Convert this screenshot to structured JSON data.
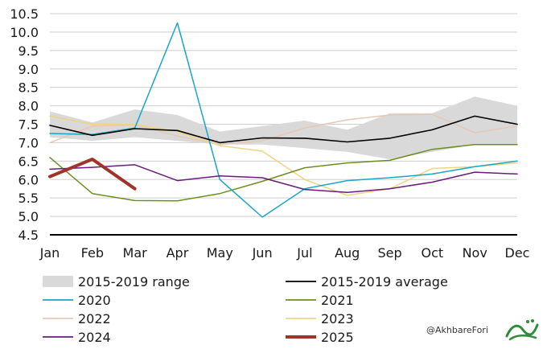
{
  "chart_data": {
    "type": "line",
    "title": "",
    "xlabel": "",
    "ylabel": "",
    "ylim": [
      4.5,
      10.5
    ],
    "y_ticks": [
      "10.5",
      "10.0",
      "9.5",
      "9.0",
      "8.5",
      "8.0",
      "7.5",
      "7.0",
      "6.5",
      "6.0",
      "5.5",
      "5.0",
      "4.5"
    ],
    "categories": [
      "Jan",
      "Feb",
      "Mar",
      "Apr",
      "May",
      "Jun",
      "Jul",
      "Aug",
      "Sep",
      "Oct",
      "Nov",
      "Dec"
    ],
    "grid": true,
    "legend_position": "bottom",
    "range_band": {
      "name": "2015-2019 range",
      "color": "#d9d9d9",
      "upper": [
        7.85,
        7.55,
        7.9,
        7.75,
        7.3,
        7.45,
        7.6,
        7.35,
        7.8,
        7.8,
        8.25,
        8.0
      ],
      "lower": [
        7.15,
        7.05,
        7.15,
        7.05,
        6.95,
        6.95,
        6.85,
        6.75,
        6.55,
        6.75,
        6.95,
        6.95
      ]
    },
    "series": [
      {
        "name": "2015-2019 average",
        "color": "#000000",
        "width": 1.6,
        "values": [
          7.47,
          7.2,
          7.38,
          7.33,
          7.0,
          7.13,
          7.12,
          7.02,
          7.12,
          7.35,
          7.72,
          7.5
        ]
      },
      {
        "name": "2020",
        "color": "#1aa6c4",
        "width": 1.5,
        "values": [
          7.25,
          7.22,
          7.4,
          10.25,
          6.0,
          4.98,
          5.75,
          5.97,
          6.05,
          6.15,
          6.35,
          6.5
        ]
      },
      {
        "name": "2021",
        "color": "#6b8f1f",
        "width": 1.5,
        "values": [
          6.6,
          5.62,
          5.43,
          5.42,
          5.62,
          5.95,
          6.32,
          6.45,
          6.52,
          6.82,
          6.95,
          6.95
        ]
      },
      {
        "name": "2022",
        "color": "#e6c9b4",
        "width": 1.5,
        "values": [
          7.0,
          7.45,
          7.48,
          7.18,
          6.95,
          7.05,
          7.4,
          7.62,
          7.75,
          7.77,
          7.27,
          7.45
        ]
      },
      {
        "name": "2023",
        "color": "#efd484",
        "width": 1.5,
        "values": [
          7.72,
          7.5,
          7.5,
          7.3,
          6.92,
          6.77,
          6.0,
          5.57,
          5.75,
          6.3,
          6.35,
          6.45
        ]
      },
      {
        "name": "2024",
        "color": "#6a1b7a",
        "width": 1.5,
        "values": [
          6.28,
          6.33,
          6.4,
          5.97,
          6.1,
          6.05,
          5.73,
          5.65,
          5.75,
          5.93,
          6.2,
          6.15
        ]
      },
      {
        "name": "2025",
        "color": "#a0342a",
        "width": 4,
        "values": [
          6.08,
          6.55,
          5.75,
          null,
          null,
          null,
          null,
          null,
          null,
          null,
          null,
          null
        ]
      }
    ]
  },
  "legend": [
    {
      "label": "2015-2019 range",
      "style": "band",
      "color": "#d9d9d9"
    },
    {
      "label": "2015-2019 average",
      "style": "line",
      "color": "#000000"
    },
    {
      "label": "2020",
      "style": "line",
      "color": "#1aa6c4"
    },
    {
      "label": "2021",
      "style": "line",
      "color": "#6b8f1f"
    },
    {
      "label": "2022",
      "style": "line",
      "color": "#e6c9b4"
    },
    {
      "label": "2023",
      "style": "line",
      "color": "#efd484"
    },
    {
      "label": "2024",
      "style": "line",
      "color": "#6a1b7a"
    },
    {
      "label": "2025",
      "style": "thick",
      "color": "#a0342a"
    }
  ],
  "watermark": {
    "handle": "@AkhbareFori"
  }
}
